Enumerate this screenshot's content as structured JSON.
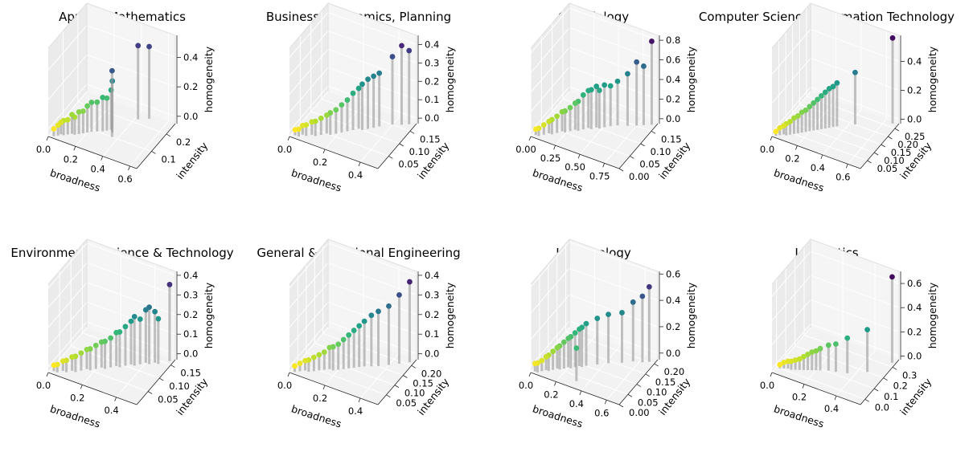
{
  "chart_data": [
    {
      "type": "scatter3d",
      "title": "Applied Mathematics",
      "xlabel": "broadness",
      "ylabel": "intensity",
      "zlabel": "homogeneity",
      "xlim": [
        0,
        0.65
      ],
      "ylim": [
        0,
        0.26
      ],
      "zlim": [
        -0.05,
        0.55
      ],
      "xticks": [
        "0.0",
        "0.2",
        "0.4",
        "0.6"
      ],
      "xtick_values": [
        0,
        0.2,
        0.4,
        0.6
      ],
      "yticks": [
        "0.1",
        "0.2"
      ],
      "ytick_values": [
        0.1,
        0.2
      ],
      "zticks": [
        "0.0",
        "0.2",
        "0.4"
      ],
      "ztick_values": [
        0,
        0.2,
        0.4
      ],
      "colormap": "viridis",
      "points": [
        [
          0.03,
          0.01,
          0.0
        ],
        [
          0.05,
          0.02,
          0.02
        ],
        [
          0.06,
          0.03,
          0.03
        ],
        [
          0.08,
          0.03,
          0.05
        ],
        [
          0.1,
          0.04,
          0.05
        ],
        [
          0.12,
          0.05,
          0.08
        ],
        [
          0.14,
          0.05,
          0.07
        ],
        [
          0.16,
          0.06,
          0.1
        ],
        [
          0.18,
          0.07,
          0.1
        ],
        [
          0.2,
          0.08,
          0.13
        ],
        [
          0.22,
          0.09,
          0.15
        ],
        [
          0.25,
          0.1,
          0.15
        ],
        [
          0.28,
          0.11,
          0.18
        ],
        [
          0.3,
          0.12,
          0.17
        ],
        [
          0.32,
          0.13,
          0.22
        ],
        [
          0.34,
          0.12,
          0.3
        ],
        [
          0.36,
          0.1,
          0.4
        ],
        [
          0.42,
          0.22,
          0.45
        ],
        [
          0.48,
          0.24,
          0.44
        ]
      ]
    },
    {
      "type": "scatter3d",
      "title": "Business, Economics, Planning",
      "xlabel": "broadness",
      "ylabel": "intensity",
      "zlabel": "homogeneity",
      "xlim": [
        0,
        0.5
      ],
      "ylim": [
        0,
        0.18
      ],
      "zlim": [
        -0.03,
        0.45
      ],
      "xticks": [
        "0.0",
        "0.2",
        "0.4"
      ],
      "xtick_values": [
        0,
        0.2,
        0.4
      ],
      "yticks": [
        "0.05",
        "0.10",
        "0.15"
      ],
      "ytick_values": [
        0.05,
        0.1,
        0.15
      ],
      "zticks": [
        "0.0",
        "0.1",
        "0.2",
        "0.3",
        "0.4"
      ],
      "ztick_values": [
        0,
        0.1,
        0.2,
        0.3,
        0.4
      ],
      "colormap": "viridis",
      "points": [
        [
          0.02,
          0.01,
          0.0
        ],
        [
          0.04,
          0.01,
          0.01
        ],
        [
          0.05,
          0.02,
          0.02
        ],
        [
          0.07,
          0.02,
          0.03
        ],
        [
          0.09,
          0.03,
          0.04
        ],
        [
          0.11,
          0.03,
          0.05
        ],
        [
          0.13,
          0.04,
          0.06
        ],
        [
          0.15,
          0.05,
          0.07
        ],
        [
          0.17,
          0.05,
          0.09
        ],
        [
          0.19,
          0.06,
          0.1
        ],
        [
          0.21,
          0.07,
          0.12
        ],
        [
          0.23,
          0.08,
          0.14
        ],
        [
          0.25,
          0.09,
          0.17
        ],
        [
          0.27,
          0.1,
          0.19
        ],
        [
          0.29,
          0.1,
          0.22
        ],
        [
          0.31,
          0.11,
          0.24
        ],
        [
          0.33,
          0.12,
          0.25
        ],
        [
          0.35,
          0.13,
          0.26
        ],
        [
          0.4,
          0.15,
          0.34
        ],
        [
          0.44,
          0.16,
          0.4
        ],
        [
          0.47,
          0.17,
          0.37
        ]
      ]
    },
    {
      "type": "scatter3d",
      "title": "Cell Biology",
      "xlabel": "broadness",
      "ylabel": "intensity",
      "zlabel": "homogeneity",
      "xlim": [
        0,
        0.9
      ],
      "ylim": [
        0,
        0.18
      ],
      "zlim": [
        -0.05,
        0.85
      ],
      "xticks": [
        "0.00",
        "0.25",
        "0.50",
        "0.75"
      ],
      "xtick_values": [
        0,
        0.25,
        0.5,
        0.75
      ],
      "yticks": [
        "0.00",
        "0.05",
        "0.10",
        "0.15"
      ],
      "ytick_values": [
        0,
        0.05,
        0.1,
        0.15
      ],
      "zticks": [
        "0.0",
        "0.2",
        "0.4",
        "0.6",
        "0.8"
      ],
      "ztick_values": [
        0,
        0.2,
        0.4,
        0.6,
        0.8
      ],
      "colormap": "viridis",
      "points": [
        [
          0.03,
          0.01,
          0.01
        ],
        [
          0.06,
          0.01,
          0.03
        ],
        [
          0.09,
          0.02,
          0.05
        ],
        [
          0.12,
          0.03,
          0.07
        ],
        [
          0.15,
          0.03,
          0.1
        ],
        [
          0.18,
          0.04,
          0.12
        ],
        [
          0.21,
          0.05,
          0.15
        ],
        [
          0.24,
          0.05,
          0.17
        ],
        [
          0.27,
          0.06,
          0.19
        ],
        [
          0.3,
          0.07,
          0.22
        ],
        [
          0.33,
          0.07,
          0.25
        ],
        [
          0.36,
          0.08,
          0.3
        ],
        [
          0.39,
          0.09,
          0.33
        ],
        [
          0.42,
          0.09,
          0.35
        ],
        [
          0.45,
          0.1,
          0.37
        ],
        [
          0.48,
          0.1,
          0.34
        ],
        [
          0.51,
          0.11,
          0.38
        ],
        [
          0.55,
          0.12,
          0.36
        ],
        [
          0.6,
          0.13,
          0.4
        ],
        [
          0.68,
          0.14,
          0.48
        ],
        [
          0.75,
          0.15,
          0.6
        ],
        [
          0.8,
          0.16,
          0.55
        ],
        [
          0.86,
          0.17,
          0.8
        ]
      ]
    },
    {
      "type": "scatter3d",
      "title": "Computer Science/Information Technology",
      "xlabel": "broadness",
      "ylabel": "intensity",
      "zlabel": "homogeneity",
      "xlim": [
        0,
        0.7
      ],
      "ylim": [
        0,
        0.28
      ],
      "zlim": [
        -0.03,
        0.58
      ],
      "xticks": [
        "0.0",
        "0.2",
        "0.4",
        "0.6"
      ],
      "xtick_values": [
        0,
        0.2,
        0.4,
        0.6
      ],
      "yticks": [
        "0.05",
        "0.10",
        "0.15",
        "0.20",
        "0.25"
      ],
      "ytick_values": [
        0.05,
        0.1,
        0.15,
        0.2,
        0.25
      ],
      "zticks": [
        "0.0",
        "0.2",
        "0.4"
      ],
      "ztick_values": [
        0,
        0.2,
        0.4
      ],
      "colormap": "viridis",
      "points": [
        [
          0.02,
          0.01,
          0.0
        ],
        [
          0.04,
          0.02,
          0.02
        ],
        [
          0.06,
          0.03,
          0.03
        ],
        [
          0.08,
          0.03,
          0.05
        ],
        [
          0.1,
          0.04,
          0.06
        ],
        [
          0.12,
          0.05,
          0.08
        ],
        [
          0.14,
          0.06,
          0.09
        ],
        [
          0.16,
          0.07,
          0.11
        ],
        [
          0.18,
          0.08,
          0.12
        ],
        [
          0.2,
          0.09,
          0.14
        ],
        [
          0.22,
          0.1,
          0.16
        ],
        [
          0.24,
          0.11,
          0.18
        ],
        [
          0.26,
          0.12,
          0.2
        ],
        [
          0.28,
          0.13,
          0.22
        ],
        [
          0.3,
          0.14,
          0.24
        ],
        [
          0.32,
          0.15,
          0.25
        ],
        [
          0.34,
          0.16,
          0.27
        ],
        [
          0.44,
          0.2,
          0.33
        ],
        [
          0.66,
          0.27,
          0.56
        ]
      ]
    },
    {
      "type": "scatter3d",
      "title": "Environmental Science & Technology",
      "xlabel": "broadness",
      "ylabel": "intensity",
      "zlabel": "homogeneity",
      "xlim": [
        0,
        0.52
      ],
      "ylim": [
        0,
        0.17
      ],
      "zlim": [
        -0.03,
        0.42
      ],
      "xticks": [
        "0.0",
        "0.2",
        "0.4"
      ],
      "xtick_values": [
        0,
        0.2,
        0.4
      ],
      "yticks": [
        "0.05",
        "0.10",
        "0.15"
      ],
      "ytick_values": [
        0.05,
        0.1,
        0.15
      ],
      "zticks": [
        "0.0",
        "0.1",
        "0.2",
        "0.3",
        "0.4"
      ],
      "ztick_values": [
        0,
        0.1,
        0.2,
        0.3,
        0.4
      ],
      "colormap": "viridis",
      "points": [
        [
          0.02,
          0.01,
          0.0
        ],
        [
          0.04,
          0.01,
          0.01
        ],
        [
          0.06,
          0.02,
          0.02
        ],
        [
          0.08,
          0.02,
          0.03
        ],
        [
          0.1,
          0.03,
          0.04
        ],
        [
          0.12,
          0.03,
          0.05
        ],
        [
          0.14,
          0.04,
          0.06
        ],
        [
          0.16,
          0.05,
          0.07
        ],
        [
          0.18,
          0.05,
          0.08
        ],
        [
          0.2,
          0.06,
          0.09
        ],
        [
          0.22,
          0.07,
          0.1
        ],
        [
          0.24,
          0.07,
          0.11
        ],
        [
          0.26,
          0.08,
          0.12
        ],
        [
          0.28,
          0.09,
          0.14
        ],
        [
          0.3,
          0.09,
          0.15
        ],
        [
          0.32,
          0.1,
          0.17
        ],
        [
          0.34,
          0.11,
          0.19
        ],
        [
          0.36,
          0.11,
          0.22
        ],
        [
          0.38,
          0.12,
          0.2
        ],
        [
          0.4,
          0.13,
          0.24
        ],
        [
          0.42,
          0.13,
          0.26
        ],
        [
          0.44,
          0.14,
          0.23
        ],
        [
          0.46,
          0.14,
          0.2
        ],
        [
          0.5,
          0.16,
          0.36
        ]
      ]
    },
    {
      "type": "scatter3d",
      "title": "General & Traditional Engineering",
      "xlabel": "broadness",
      "ylabel": "intensity",
      "zlabel": "homogeneity",
      "xlim": [
        0,
        0.5
      ],
      "ylim": [
        0,
        0.23
      ],
      "zlim": [
        -0.03,
        0.42
      ],
      "xticks": [
        "0.0",
        "0.2",
        "0.4"
      ],
      "xtick_values": [
        0,
        0.2,
        0.4
      ],
      "yticks": [
        "0.05",
        "0.10",
        "0.15",
        "0.20"
      ],
      "ytick_values": [
        0.05,
        0.1,
        0.15,
        0.2
      ],
      "zticks": [
        "0.0",
        "0.1",
        "0.2",
        "0.3",
        "0.4"
      ],
      "ztick_values": [
        0,
        0.1,
        0.2,
        0.3,
        0.4
      ],
      "colormap": "viridis",
      "points": [
        [
          0.02,
          0.01,
          0.0
        ],
        [
          0.04,
          0.02,
          0.01
        ],
        [
          0.06,
          0.03,
          0.02
        ],
        [
          0.08,
          0.03,
          0.03
        ],
        [
          0.1,
          0.04,
          0.04
        ],
        [
          0.12,
          0.05,
          0.05
        ],
        [
          0.14,
          0.06,
          0.06
        ],
        [
          0.16,
          0.07,
          0.08
        ],
        [
          0.18,
          0.07,
          0.09
        ],
        [
          0.2,
          0.08,
          0.1
        ],
        [
          0.22,
          0.09,
          0.12
        ],
        [
          0.24,
          0.1,
          0.14
        ],
        [
          0.26,
          0.11,
          0.16
        ],
        [
          0.28,
          0.12,
          0.18
        ],
        [
          0.3,
          0.13,
          0.2
        ],
        [
          0.33,
          0.14,
          0.23
        ],
        [
          0.36,
          0.15,
          0.25
        ],
        [
          0.4,
          0.17,
          0.27
        ],
        [
          0.44,
          0.19,
          0.32
        ],
        [
          0.48,
          0.21,
          0.38
        ]
      ]
    },
    {
      "type": "scatter3d",
      "title": "Immunology",
      "xlabel": "broadness",
      "ylabel": "intensity",
      "zlabel": "homogeneity",
      "xlim": [
        0,
        0.7
      ],
      "ylim": [
        0,
        0.22
      ],
      "zlim": [
        -0.05,
        0.62
      ],
      "xticks": [
        "0.0",
        "0.2",
        "0.4",
        "0.6"
      ],
      "xtick_values": [
        0,
        0.2,
        0.4,
        0.6
      ],
      "yticks": [
        "0.00",
        "0.05",
        "0.10",
        "0.15",
        "0.20"
      ],
      "ytick_values": [
        0,
        0.05,
        0.1,
        0.15,
        0.2
      ],
      "zticks": [
        "0.0",
        "0.2",
        "0.4",
        "0.6"
      ],
      "ztick_values": [
        0,
        0.2,
        0.4,
        0.6
      ],
      "colormap": "viridis",
      "points": [
        [
          0.02,
          0.01,
          0.01
        ],
        [
          0.04,
          0.01,
          0.02
        ],
        [
          0.06,
          0.02,
          0.03
        ],
        [
          0.08,
          0.03,
          0.05
        ],
        [
          0.1,
          0.03,
          0.07
        ],
        [
          0.12,
          0.04,
          0.09
        ],
        [
          0.14,
          0.05,
          0.11
        ],
        [
          0.16,
          0.05,
          0.13
        ],
        [
          0.18,
          0.06,
          0.15
        ],
        [
          0.2,
          0.07,
          0.17
        ],
        [
          0.22,
          0.07,
          0.19
        ],
        [
          0.24,
          0.08,
          0.21
        ],
        [
          0.26,
          0.09,
          0.23
        ],
        [
          0.28,
          0.09,
          0.25
        ],
        [
          0.3,
          0.1,
          0.27
        ],
        [
          0.32,
          0.03,
          0.2
        ],
        [
          0.36,
          0.12,
          0.3
        ],
        [
          0.42,
          0.14,
          0.32
        ],
        [
          0.5,
          0.16,
          0.33
        ],
        [
          0.56,
          0.18,
          0.4
        ],
        [
          0.62,
          0.19,
          0.45
        ],
        [
          0.66,
          0.2,
          0.52
        ]
      ]
    },
    {
      "type": "scatter3d",
      "title": "Linguistics",
      "xlabel": "broadness",
      "ylabel": "intensity",
      "zlabel": "homogeneity",
      "xlim": [
        0,
        0.55
      ],
      "ylim": [
        -0.05,
        0.37
      ],
      "zlim": [
        -0.03,
        0.7
      ],
      "xticks": [
        "0.0",
        "0.2",
        "0.4"
      ],
      "xtick_values": [
        0,
        0.2,
        0.4
      ],
      "yticks": [
        "0.0",
        "0.1",
        "0.2",
        "0.3"
      ],
      "ytick_values": [
        0,
        0.1,
        0.2,
        0.3
      ],
      "zticks": [
        "0.0",
        "0.2",
        "0.4",
        "0.6"
      ],
      "ztick_values": [
        0,
        0.2,
        0.4,
        0.6
      ],
      "colormap": "viridis",
      "points": [
        [
          0.02,
          0.0,
          0.0
        ],
        [
          0.04,
          0.01,
          0.02
        ],
        [
          0.06,
          0.02,
          0.03
        ],
        [
          0.08,
          0.02,
          0.04
        ],
        [
          0.1,
          0.03,
          0.05
        ],
        [
          0.12,
          0.04,
          0.06
        ],
        [
          0.14,
          0.05,
          0.08
        ],
        [
          0.16,
          0.06,
          0.1
        ],
        [
          0.18,
          0.07,
          0.12
        ],
        [
          0.2,
          0.08,
          0.13
        ],
        [
          0.22,
          0.09,
          0.15
        ],
        [
          0.26,
          0.11,
          0.18
        ],
        [
          0.3,
          0.12,
          0.2
        ],
        [
          0.36,
          0.14,
          0.26
        ],
        [
          0.45,
          0.2,
          0.32
        ],
        [
          0.53,
          0.33,
          0.68
        ]
      ]
    }
  ]
}
